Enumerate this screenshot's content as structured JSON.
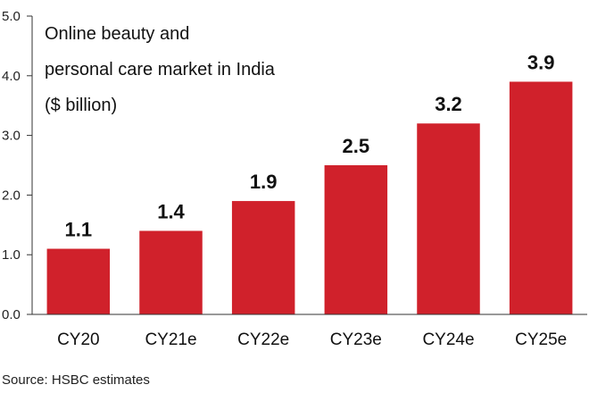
{
  "chart_data": {
    "type": "bar",
    "title_lines": [
      "Online beauty and",
      "personal care market in India",
      "($ billion)"
    ],
    "categories": [
      "CY20",
      "CY21e",
      "CY22e",
      "CY23e",
      "CY24e",
      "CY25e"
    ],
    "values": [
      1.1,
      1.4,
      1.9,
      2.5,
      3.2,
      3.9
    ],
    "value_labels": [
      "1.1",
      "1.4",
      "1.9",
      "2.5",
      "3.2",
      "3.9"
    ],
    "yticks": [
      "0.0",
      "1.0",
      "2.0",
      "3.0",
      "4.0",
      "5.0"
    ],
    "ylim": [
      0,
      5
    ],
    "grid": false,
    "bar_color": "#d0212b",
    "source": "Source: HSBC estimates"
  }
}
